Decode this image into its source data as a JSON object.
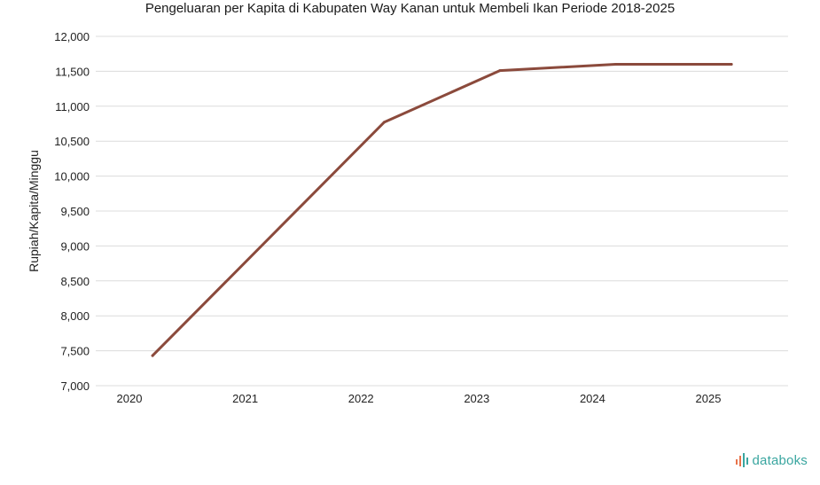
{
  "chart_data": {
    "type": "line",
    "title": "Pengeluaran per Kapita di Kabupaten Way Kanan untuk Membeli Ikan Periode 2018-2025",
    "xlabel": "",
    "ylabel": "Rupiah/Kapita/Minggu",
    "categories": [
      "2020",
      "2021",
      "2022",
      "2023",
      "2024",
      "2025"
    ],
    "x": [
      2020.2,
      2022.2,
      2023.2,
      2024.2,
      2025.2
    ],
    "series": [
      {
        "values": [
          7430,
          10770,
          11510,
          11600,
          11600
        ],
        "color": "#8b4a3c"
      }
    ],
    "ylim": [
      7000,
      12000
    ],
    "yticks": [
      7000,
      7500,
      8000,
      8500,
      9000,
      9500,
      10000,
      10500,
      11000,
      11500,
      12000
    ],
    "ytick_labels": [
      "7,000",
      "7,500",
      "8,000",
      "8,500",
      "9,000",
      "9,500",
      "10,000",
      "10,500",
      "11,000",
      "11,500",
      "12,000"
    ],
    "grid": true,
    "legend": "none"
  },
  "brand": {
    "name": "databoks",
    "color": "#3aa6a0",
    "accent": "#e8734a"
  },
  "colors": {
    "grid": "#dcdcdc",
    "text": "#222222"
  }
}
